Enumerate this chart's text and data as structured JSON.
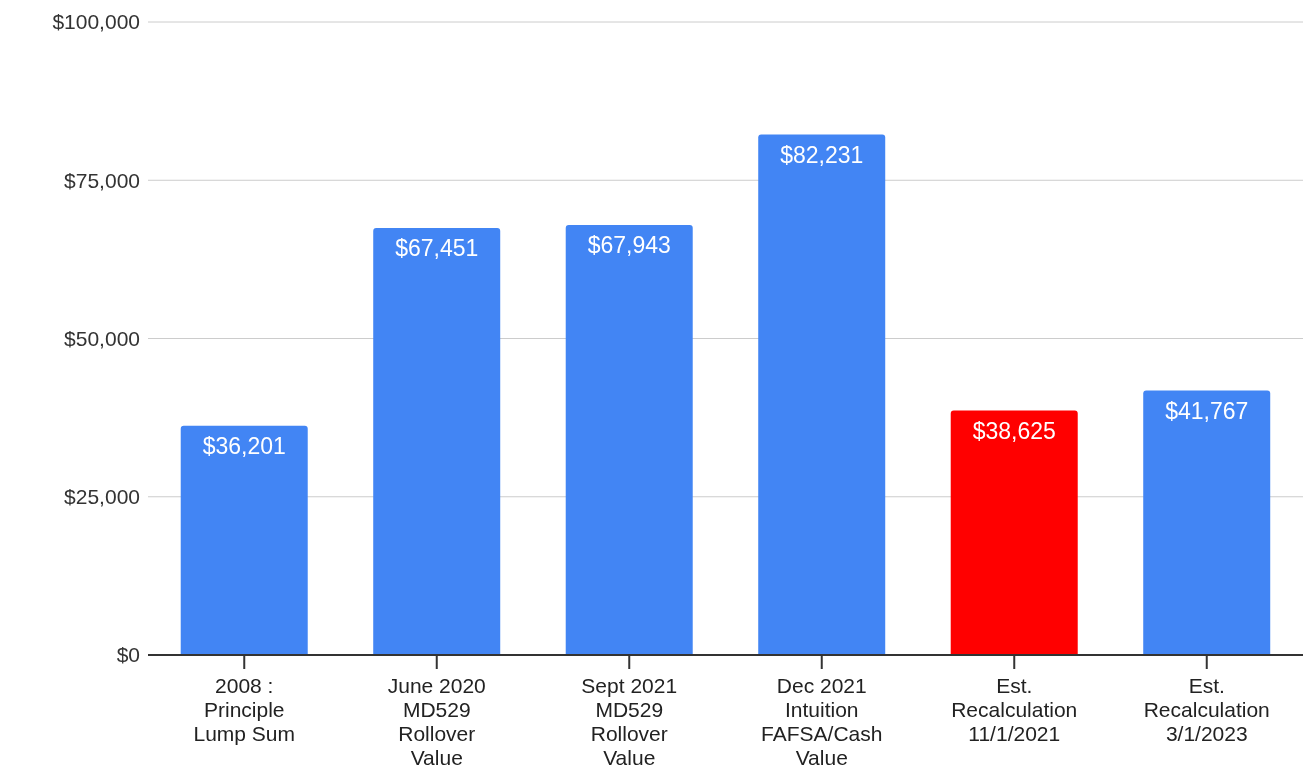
{
  "chart_data": {
    "type": "bar",
    "categories": [
      "2008 : Principle Lump Sum",
      "June 2020 MD529 Rollover Value",
      "Sept 2021 MD529 Rollover Value",
      "Dec 2021 Intuition FAFSA/Cash Value",
      "Est. Recalculation 11/1/2021",
      "Est. Recalculation 3/1/2023"
    ],
    "values": [
      36201,
      67451,
      67943,
      82231,
      38625,
      41767
    ],
    "colors": [
      "#4285f4",
      "#4285f4",
      "#4285f4",
      "#4285f4",
      "#ff0000",
      "#4285f4"
    ],
    "value_labels": [
      "$36,201",
      "$67,451",
      "$67,943",
      "$82,231",
      "$38,625",
      "$41,767"
    ],
    "ylim": [
      0,
      100000
    ],
    "yticks": [
      {
        "value": 0,
        "label": "$0"
      },
      {
        "value": 25000,
        "label": "$25,000"
      },
      {
        "value": 50000,
        "label": "$50,000"
      },
      {
        "value": 75000,
        "label": "$75,000"
      },
      {
        "value": 100000,
        "label": "$100,000"
      }
    ],
    "grid": "y",
    "legend": false
  }
}
